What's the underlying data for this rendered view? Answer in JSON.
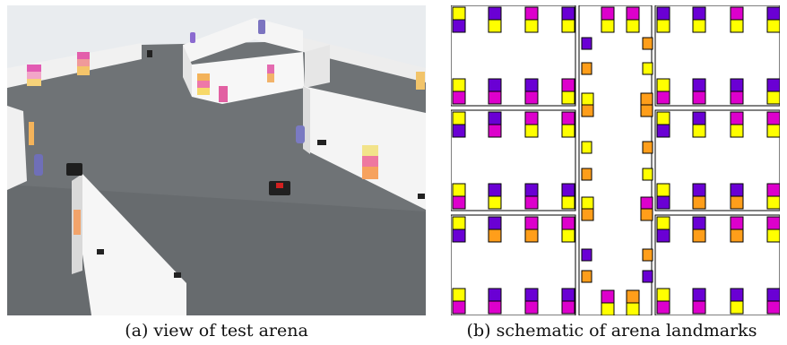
{
  "captions": {
    "a": "(a) view of test arena",
    "b": "(b) schematic of arena landmarks"
  },
  "colors": {
    "yellow": "#ffff00",
    "magenta": "#dd00cc",
    "purple": "#6a00d4",
    "orange": "#ff9e1a",
    "floor": "#6e7275",
    "wall": "#f3f3f3"
  },
  "photo_icons": [
    "robot-icon",
    "landmark-icon",
    "wall-icon"
  ]
}
